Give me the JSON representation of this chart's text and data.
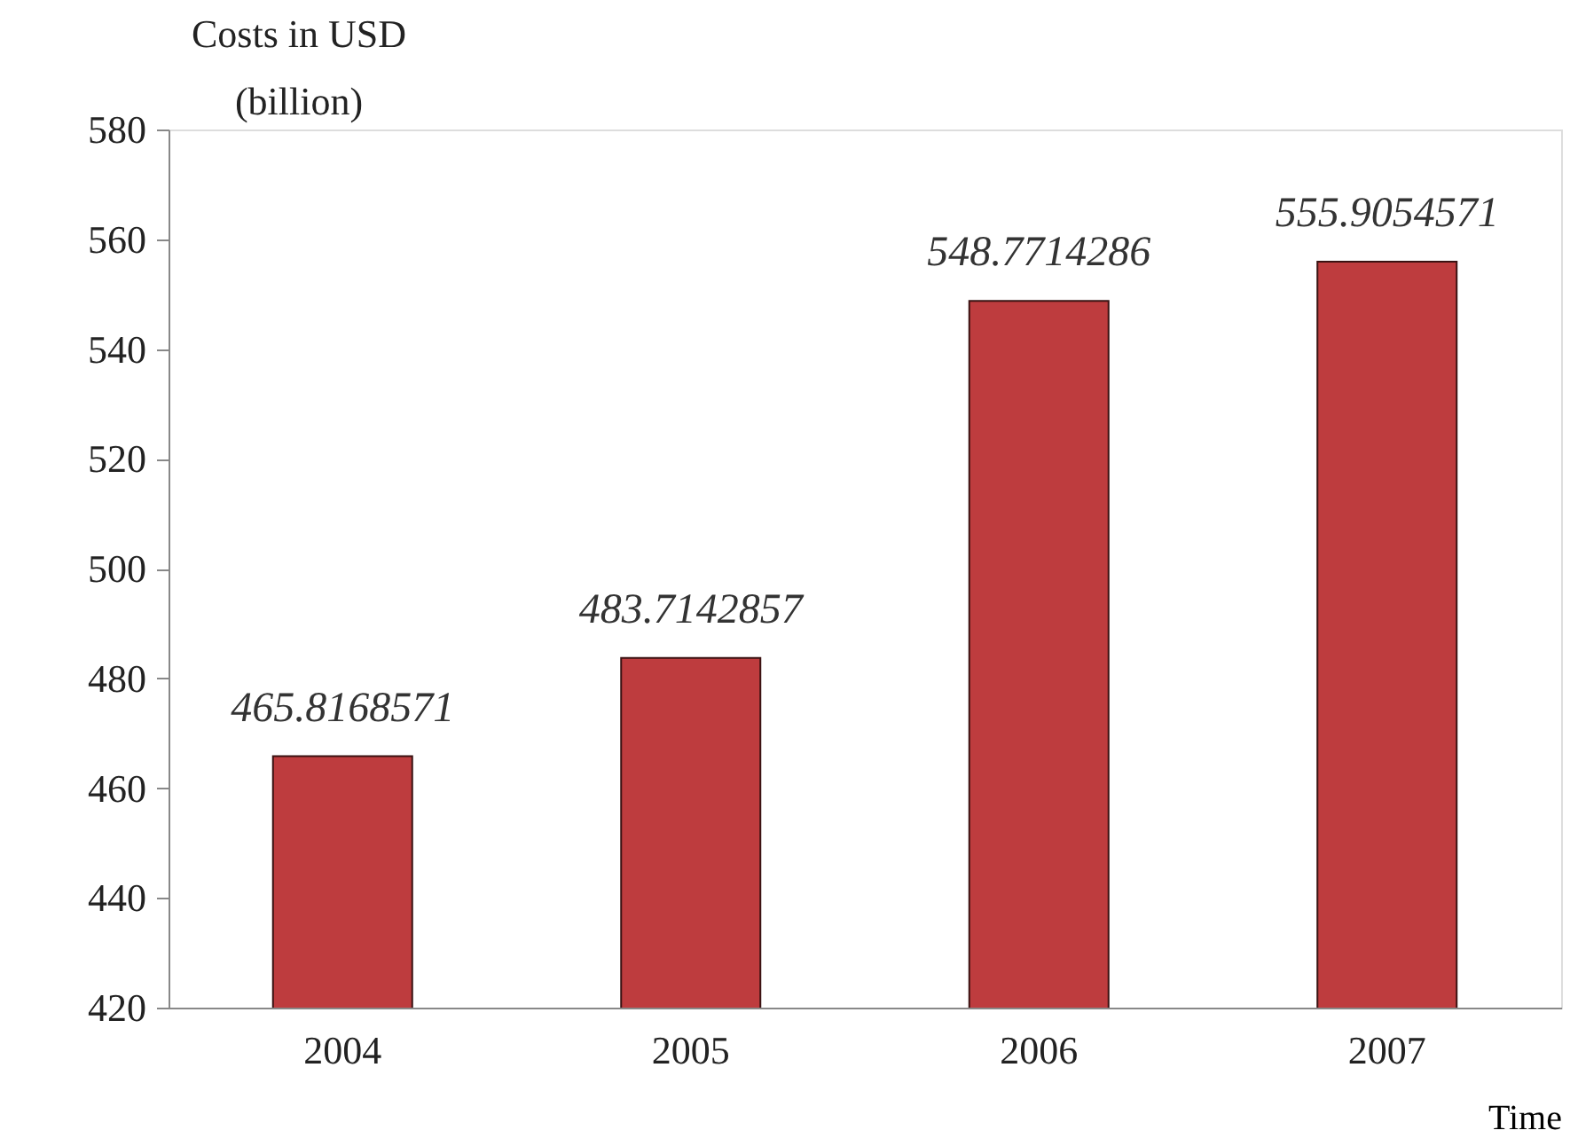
{
  "chart_data": {
    "type": "bar",
    "xlabel": "Time",
    "ylabel": "Costs in USD\n(billion)",
    "categories": [
      "2004",
      "2005",
      "2006",
      "2007"
    ],
    "values": [
      465.8168571,
      483.7142857,
      548.7714286,
      555.9054571
    ],
    "color": "#be3c3e",
    "ylim": [
      420,
      580
    ],
    "yticks": [
      420,
      440,
      460,
      480,
      500,
      520,
      540,
      560,
      580
    ],
    "grid": false,
    "data_labels": true
  }
}
